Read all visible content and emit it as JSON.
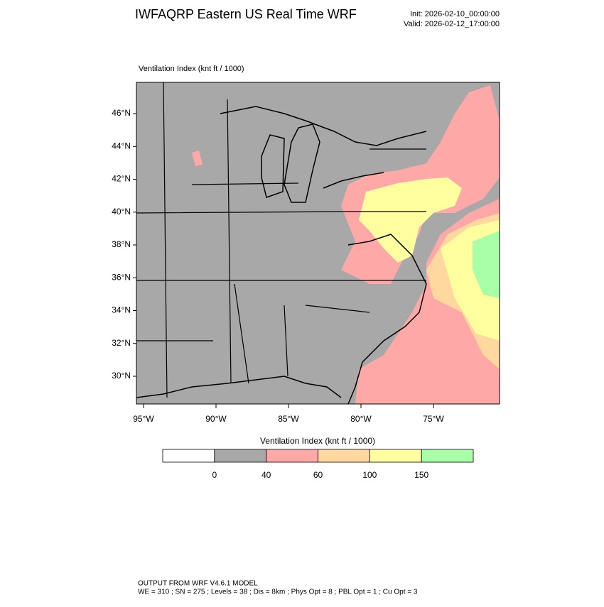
{
  "header": {
    "title": "IWFAQRP Eastern US Real Time WRF",
    "init": "Init: 2026-02-10_00:00:00",
    "valid": "Valid: 2026-02-12_17:00:00"
  },
  "map": {
    "title": "Ventilation Index   (knt ft / 1000)",
    "lat_labels": [
      "46°N",
      "44°N",
      "42°N",
      "40°N",
      "38°N",
      "36°N",
      "34°N",
      "32°N",
      "30°N"
    ],
    "lon_labels": [
      "95°W",
      "90°W",
      "85°W",
      "80°W",
      "75°W"
    ]
  },
  "colorbar": {
    "title": "Ventilation Index  (knt ft / 1000)",
    "colors": [
      "#ffffff",
      "#a8a8a8",
      "#ffa8a8",
      "#ffd8a0",
      "#ffffa0",
      "#a8ffa8"
    ],
    "ticks": [
      0,
      40,
      60,
      100,
      150
    ]
  },
  "footer": {
    "line1": "OUTPUT FROM WRF V4.6.1 MODEL",
    "line2": "WE = 310 ; SN = 275 ; Levels = 38 ; Dis = 8km ; Phys Opt = 8 ; PBL Opt = 1 ; Cu Opt = 3"
  }
}
